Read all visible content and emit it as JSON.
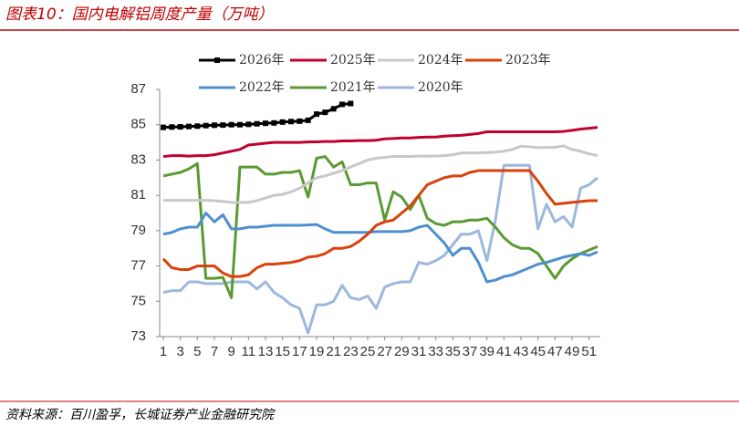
{
  "chart_data": {
    "type": "line",
    "title": "图表10：国内电解铝周度产量（万吨）",
    "source": "资料来源：百川盈孚，长城证券产业金融研究院",
    "x": [
      1,
      2,
      3,
      4,
      5,
      6,
      7,
      8,
      9,
      10,
      11,
      12,
      13,
      14,
      15,
      16,
      17,
      18,
      19,
      20,
      21,
      22,
      23,
      24,
      25,
      26,
      27,
      28,
      29,
      30,
      31,
      32,
      33,
      34,
      35,
      36,
      37,
      38,
      39,
      40,
      41,
      42,
      43,
      44,
      45,
      46,
      47,
      48,
      49,
      50,
      51,
      52
    ],
    "xlim": [
      1,
      52
    ],
    "xticks": [
      1,
      3,
      5,
      7,
      9,
      11,
      13,
      15,
      17,
      19,
      21,
      23,
      25,
      27,
      29,
      31,
      33,
      35,
      37,
      39,
      41,
      43,
      45,
      47,
      49,
      51
    ],
    "ylim": [
      73,
      87
    ],
    "yticks": [
      73,
      75,
      77,
      79,
      81,
      83,
      85,
      87
    ],
    "series": [
      {
        "name": "2026年",
        "color": "#000000",
        "marker": "square",
        "values": [
          84.85,
          84.87,
          84.88,
          84.9,
          84.92,
          84.95,
          84.97,
          84.98,
          85.0,
          85.0,
          85.02,
          85.05,
          85.08,
          85.1,
          85.15,
          85.18,
          85.2,
          85.25,
          85.6,
          85.7,
          85.9,
          86.15,
          86.2,
          null,
          null,
          null,
          null,
          null,
          null,
          null,
          null,
          null,
          null,
          null,
          null,
          null,
          null,
          null,
          null,
          null,
          null,
          null,
          null,
          null,
          null,
          null,
          null,
          null,
          null,
          null,
          null,
          null
        ]
      },
      {
        "name": "2025年",
        "color": "#c0002f",
        "values": [
          83.2,
          83.25,
          83.25,
          83.22,
          83.25,
          83.25,
          83.3,
          83.4,
          83.5,
          83.6,
          83.85,
          83.9,
          83.95,
          84.0,
          84.0,
          84.0,
          84.0,
          84.02,
          84.03,
          84.05,
          84.05,
          84.08,
          84.08,
          84.1,
          84.1,
          84.12,
          84.2,
          84.22,
          84.25,
          84.25,
          84.28,
          84.3,
          84.3,
          84.35,
          84.38,
          84.4,
          84.45,
          84.5,
          84.6,
          84.6,
          84.6,
          84.6,
          84.6,
          84.6,
          84.6,
          84.6,
          84.6,
          84.62,
          84.68,
          84.75,
          84.8,
          84.85
        ]
      },
      {
        "name": "2024年",
        "color": "#c8c8c8",
        "values": [
          80.72,
          80.72,
          80.72,
          80.72,
          80.72,
          80.72,
          80.7,
          80.65,
          80.6,
          80.6,
          80.6,
          80.7,
          80.85,
          81.0,
          81.05,
          81.2,
          81.4,
          81.7,
          82.0,
          82.1,
          82.25,
          82.4,
          82.6,
          82.8,
          83.0,
          83.1,
          83.15,
          83.2,
          83.2,
          83.2,
          83.22,
          83.22,
          83.22,
          83.25,
          83.3,
          83.4,
          83.4,
          83.4,
          83.42,
          83.45,
          83.5,
          83.6,
          83.78,
          83.75,
          83.7,
          83.72,
          83.72,
          83.8,
          83.6,
          83.5,
          83.35,
          83.25
        ]
      },
      {
        "name": "2023年",
        "color": "#d9420b",
        "values": [
          77.4,
          76.9,
          76.8,
          76.8,
          77.0,
          77.0,
          77.0,
          76.6,
          76.4,
          76.4,
          76.5,
          76.9,
          77.1,
          77.1,
          77.15,
          77.2,
          77.3,
          77.5,
          77.55,
          77.7,
          78.0,
          78.0,
          78.1,
          78.4,
          78.8,
          79.3,
          79.5,
          79.6,
          80.0,
          80.4,
          81.0,
          81.6,
          81.8,
          82.0,
          82.1,
          82.1,
          82.3,
          82.4,
          82.4,
          82.4,
          82.4,
          82.4,
          82.4,
          82.4,
          81.8,
          81.1,
          80.5,
          80.55,
          80.6,
          80.65,
          80.7,
          80.7
        ]
      },
      {
        "name": "2022年",
        "color": "#4f8fd0",
        "values": [
          78.8,
          78.9,
          79.1,
          79.2,
          79.2,
          80.0,
          79.5,
          79.9,
          79.1,
          79.1,
          79.2,
          79.2,
          79.25,
          79.3,
          79.3,
          79.3,
          79.3,
          79.32,
          79.35,
          79.1,
          78.9,
          78.9,
          78.9,
          78.9,
          78.9,
          78.95,
          78.95,
          78.95,
          78.95,
          79.0,
          79.2,
          79.3,
          78.8,
          78.3,
          77.6,
          78.0,
          78.0,
          77.2,
          76.1,
          76.2,
          76.4,
          76.5,
          76.7,
          76.9,
          77.1,
          77.2,
          77.35,
          77.5,
          77.6,
          77.7,
          77.6,
          77.8
        ]
      },
      {
        "name": "2021年",
        "color": "#5b9a32",
        "values": [
          82.1,
          82.2,
          82.3,
          82.5,
          82.8,
          76.3,
          76.3,
          76.35,
          75.2,
          82.6,
          82.6,
          82.6,
          82.2,
          82.2,
          82.3,
          82.3,
          82.4,
          80.9,
          83.1,
          83.2,
          82.6,
          82.9,
          81.6,
          81.6,
          81.7,
          81.7,
          79.6,
          81.2,
          80.9,
          80.2,
          81.0,
          79.7,
          79.4,
          79.3,
          79.5,
          79.5,
          79.6,
          79.6,
          79.7,
          79.2,
          78.6,
          78.2,
          78.0,
          78.0,
          77.7,
          77.0,
          76.3,
          77.0,
          77.4,
          77.7,
          77.9,
          78.1
        ]
      },
      {
        "name": "2020年",
        "color": "#9cb8dc",
        "values": [
          75.5,
          75.6,
          75.6,
          76.1,
          76.1,
          76.0,
          76.0,
          76.0,
          76.1,
          76.1,
          76.1,
          75.7,
          76.1,
          75.5,
          75.2,
          74.8,
          74.6,
          73.2,
          74.8,
          74.8,
          75.0,
          75.9,
          75.2,
          75.1,
          75.3,
          74.6,
          75.8,
          76.0,
          76.1,
          76.1,
          77.2,
          77.1,
          77.3,
          77.6,
          78.2,
          78.8,
          78.8,
          79.0,
          77.3,
          79.6,
          82.7,
          82.7,
          82.7,
          82.7,
          79.1,
          80.5,
          79.5,
          79.8,
          79.2,
          81.4,
          81.6,
          82.0
        ]
      }
    ]
  }
}
